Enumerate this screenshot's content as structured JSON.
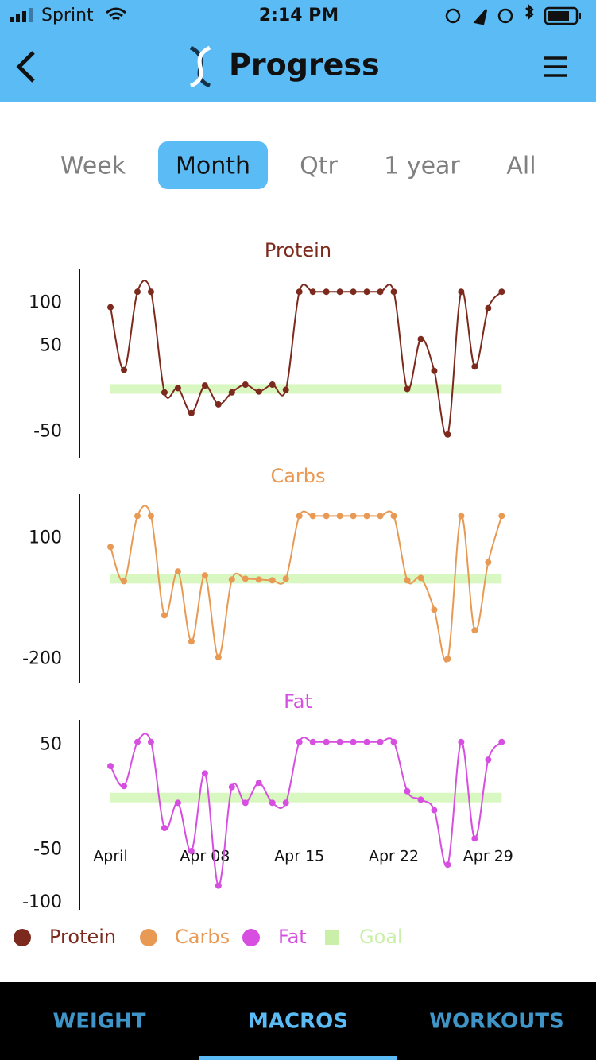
{
  "status_bar": {
    "carrier": "Sprint",
    "time": "2:14 PM"
  },
  "nav": {
    "title": "Progress"
  },
  "tabs": {
    "items": [
      "Week",
      "Month",
      "Qtr",
      "1 year",
      "All"
    ],
    "active": 1
  },
  "chart_data": [
    {
      "type": "line",
      "title": "Protein",
      "color": "#7d2a1e",
      "x": [
        1,
        2,
        3,
        4,
        5,
        6,
        7,
        8,
        9,
        10,
        11,
        12,
        13,
        14,
        15,
        16,
        17,
        18,
        19,
        20,
        21,
        22,
        23,
        24,
        25,
        26,
        27,
        28,
        29,
        30
      ],
      "values": [
        95,
        22,
        113,
        113,
        -4,
        1,
        -28,
        4,
        -18,
        -4,
        5,
        -3,
        5,
        -1,
        113,
        113,
        113,
        113,
        113,
        113,
        113,
        113,
        0,
        58,
        21,
        -53,
        113,
        26,
        94,
        113
      ],
      "xlim": [
        -1.3,
        31.1
      ],
      "ylim": [
        -80,
        140
      ],
      "yticks": [
        -50,
        50,
        100
      ],
      "goal": 0,
      "goal_color": "#d9f7c0"
    },
    {
      "type": "line",
      "title": "Carbs",
      "color": "#e89a55",
      "x": [
        1,
        2,
        3,
        4,
        5,
        6,
        7,
        8,
        9,
        10,
        11,
        12,
        13,
        14,
        15,
        16,
        17,
        18,
        19,
        20,
        21,
        22,
        23,
        24,
        25,
        26,
        27,
        28,
        29,
        30
      ],
      "values": [
        79,
        -6,
        156,
        156,
        -91,
        18,
        -156,
        8,
        -195,
        -2,
        0,
        -2,
        -4,
        0,
        156,
        156,
        156,
        156,
        156,
        156,
        156,
        156,
        -4,
        2,
        -77,
        -199,
        156,
        -128,
        41,
        156
      ],
      "xlim": [
        -1.3,
        31.1
      ],
      "ylim": [
        -260,
        210
      ],
      "yticks": [
        -200,
        100
      ],
      "goal": 0,
      "goal_color": "#d9f7c0"
    },
    {
      "type": "line",
      "title": "Fat",
      "color": "#d64fe0",
      "x": [
        1,
        2,
        3,
        4,
        5,
        6,
        7,
        8,
        9,
        10,
        11,
        12,
        13,
        14,
        15,
        16,
        17,
        18,
        19,
        20,
        21,
        22,
        23,
        24,
        25,
        26,
        27,
        28,
        29,
        30
      ],
      "values": [
        30,
        11,
        53,
        53,
        -29,
        -5,
        -51,
        23,
        -84,
        10,
        -5,
        14,
        -5,
        -5,
        53,
        53,
        53,
        53,
        53,
        53,
        53,
        53,
        6,
        -2,
        -12,
        -64,
        53,
        -39,
        36,
        53
      ],
      "xlim": [
        -1.3,
        31.1
      ],
      "ylim": [
        -107,
        74
      ],
      "yticks": [
        -100,
        -50,
        50
      ],
      "xticks": [
        {
          "value": 1,
          "label": "April"
        },
        {
          "value": 8,
          "label": "Apr 08"
        },
        {
          "value": 15,
          "label": "Apr 15"
        },
        {
          "value": 22,
          "label": "Apr 22"
        },
        {
          "value": 29,
          "label": "Apr 29"
        }
      ],
      "goal": 0,
      "goal_color": "#d9f7c0"
    }
  ],
  "legend": [
    {
      "name": "Protein",
      "color": "#7d2a1e"
    },
    {
      "name": "Carbs",
      "color": "#e89a55"
    },
    {
      "name": "Fat",
      "color": "#d64fe0"
    },
    {
      "name": "Goal",
      "color": "#c9efa8"
    }
  ],
  "bottom_nav": {
    "items": [
      "WEIGHT",
      "MACROS",
      "WORKOUTS"
    ],
    "active": 1
  }
}
